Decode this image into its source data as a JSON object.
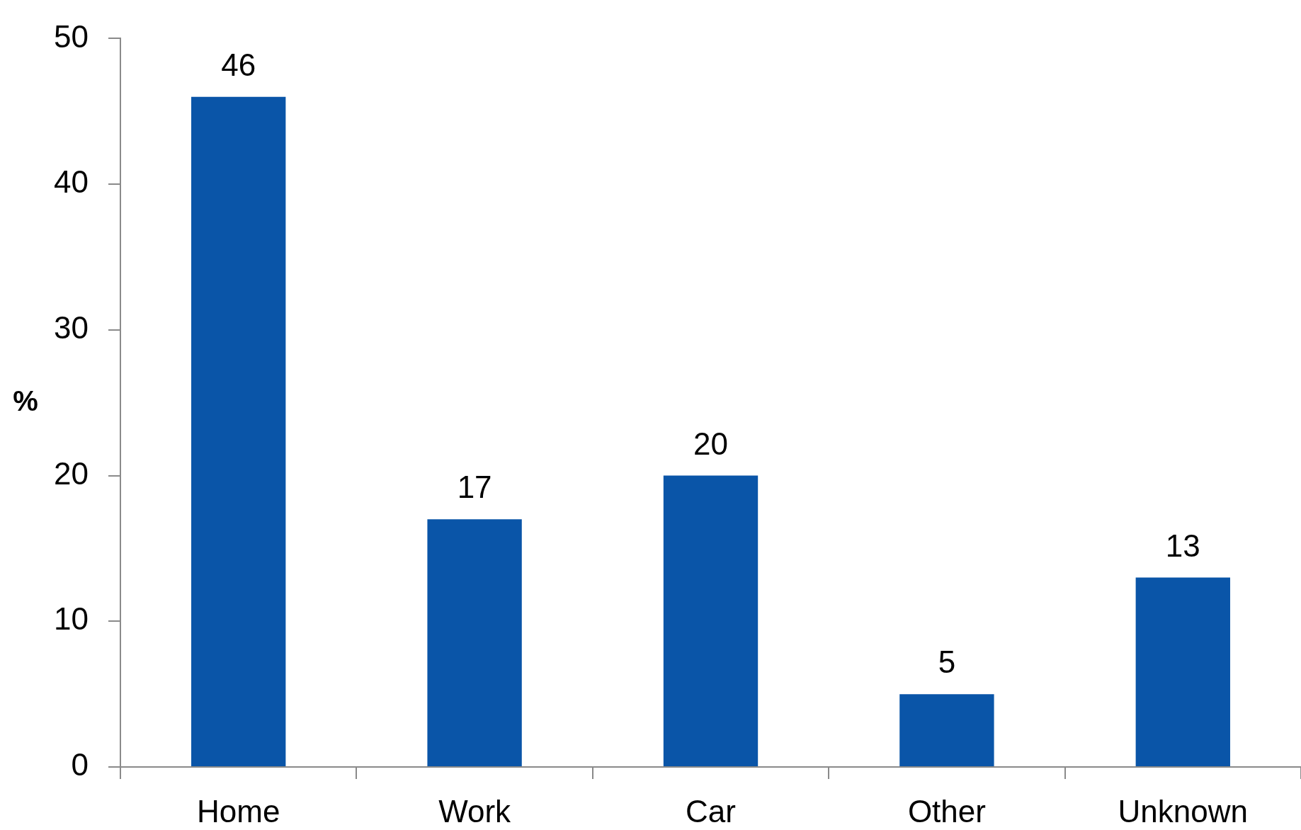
{
  "chart_data": {
    "type": "bar",
    "ylabel": "%",
    "categories": [
      "Home",
      "Work",
      "Car",
      "Other",
      "Unknown"
    ],
    "values": [
      46,
      17,
      20,
      5,
      13
    ],
    "color": "#0a55a8",
    "ylim": [
      0,
      50
    ],
    "yticks": [
      0,
      10,
      20,
      30,
      40,
      50
    ],
    "grid": false,
    "legend": false,
    "data_labels": true
  }
}
